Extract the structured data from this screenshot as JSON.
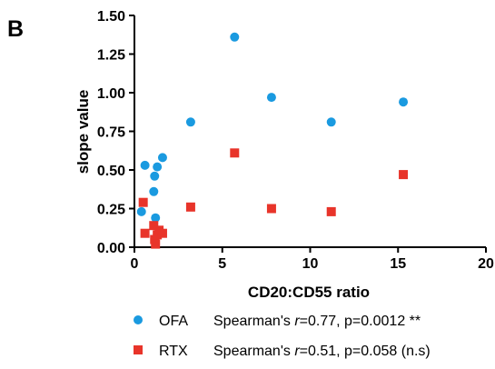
{
  "panel_label": "B",
  "chart_data": {
    "type": "scatter",
    "xlabel": "CD20:CD55 ratio",
    "ylabel": "slope value",
    "xlim": [
      0,
      20
    ],
    "ylim": [
      0,
      1.5
    ],
    "x_ticks": [
      0,
      5,
      10,
      15,
      20
    ],
    "x_tick_labels": [
      "0",
      "5",
      "10",
      "15",
      "20"
    ],
    "y_ticks": [
      0,
      0.25,
      0.5,
      0.75,
      1.0,
      1.25,
      1.5
    ],
    "y_tick_labels": [
      "0.00",
      "0.25",
      "0.50",
      "0.75",
      "1.00",
      "1.25",
      "1.50"
    ],
    "grid": false,
    "legend_position": "bottom",
    "series": [
      {
        "name": "OFA",
        "marker": "circle",
        "color": "#1a9ae0",
        "points": [
          [
            0.4,
            0.23
          ],
          [
            0.6,
            0.53
          ],
          [
            1.1,
            0.36
          ],
          [
            1.15,
            0.46
          ],
          [
            1.3,
            0.52
          ],
          [
            1.6,
            0.58
          ],
          [
            1.2,
            0.19
          ],
          [
            3.2,
            0.81
          ],
          [
            5.7,
            1.36
          ],
          [
            7.8,
            0.97
          ],
          [
            11.2,
            0.81
          ],
          [
            15.3,
            0.94
          ]
        ],
        "legend_prefix": "Spearman's ",
        "legend_r": "r",
        "legend_suffix": "=0.77, p=0.0012 **"
      },
      {
        "name": "RTX",
        "marker": "square",
        "color": "#e8342a",
        "points": [
          [
            0.5,
            0.29
          ],
          [
            0.6,
            0.09
          ],
          [
            1.1,
            0.14
          ],
          [
            1.15,
            0.05
          ],
          [
            1.2,
            0.02
          ],
          [
            1.3,
            0.08
          ],
          [
            1.4,
            0.11
          ],
          [
            1.6,
            0.09
          ],
          [
            3.2,
            0.26
          ],
          [
            5.7,
            0.61
          ],
          [
            7.8,
            0.25
          ],
          [
            11.2,
            0.23
          ],
          [
            15.3,
            0.47
          ]
        ],
        "legend_prefix": "Spearman's ",
        "legend_r": "r",
        "legend_suffix": "=0.51, p=0.058 (n.s)"
      }
    ]
  }
}
